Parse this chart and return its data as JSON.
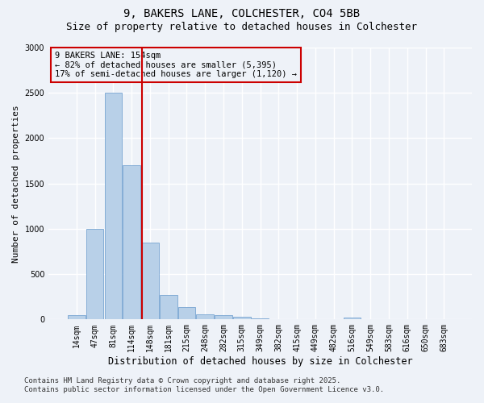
{
  "title1": "9, BAKERS LANE, COLCHESTER, CO4 5BB",
  "title2": "Size of property relative to detached houses in Colchester",
  "xlabel": "Distribution of detached houses by size in Colchester",
  "ylabel": "Number of detached properties",
  "bar_color": "#b8d0e8",
  "bar_edge_color": "#6699cc",
  "categories": [
    "14sqm",
    "47sqm",
    "81sqm",
    "114sqm",
    "148sqm",
    "181sqm",
    "215sqm",
    "248sqm",
    "282sqm",
    "315sqm",
    "349sqm",
    "382sqm",
    "415sqm",
    "449sqm",
    "482sqm",
    "516sqm",
    "549sqm",
    "583sqm",
    "616sqm",
    "650sqm",
    "683sqm"
  ],
  "values": [
    50,
    1000,
    2500,
    1700,
    850,
    270,
    140,
    60,
    45,
    30,
    10,
    5,
    3,
    0,
    0,
    18,
    0,
    0,
    0,
    0,
    0
  ],
  "ylim": [
    0,
    3000
  ],
  "vline_pos": 3.55,
  "vline_color": "#cc0000",
  "annotation_text": "9 BAKERS LANE: 154sqm\n← 82% of detached houses are smaller (5,395)\n17% of semi-detached houses are larger (1,120) →",
  "annotation_box_color": "#cc0000",
  "footer1": "Contains HM Land Registry data © Crown copyright and database right 2025.",
  "footer2": "Contains public sector information licensed under the Open Government Licence v3.0.",
  "background_color": "#eef2f8",
  "grid_color": "#ffffff",
  "title_fontsize": 10,
  "subtitle_fontsize": 9,
  "ylabel_fontsize": 8,
  "xlabel_fontsize": 8.5,
  "tick_fontsize": 7,
  "footer_fontsize": 6.5,
  "annotation_fontsize": 7.5
}
